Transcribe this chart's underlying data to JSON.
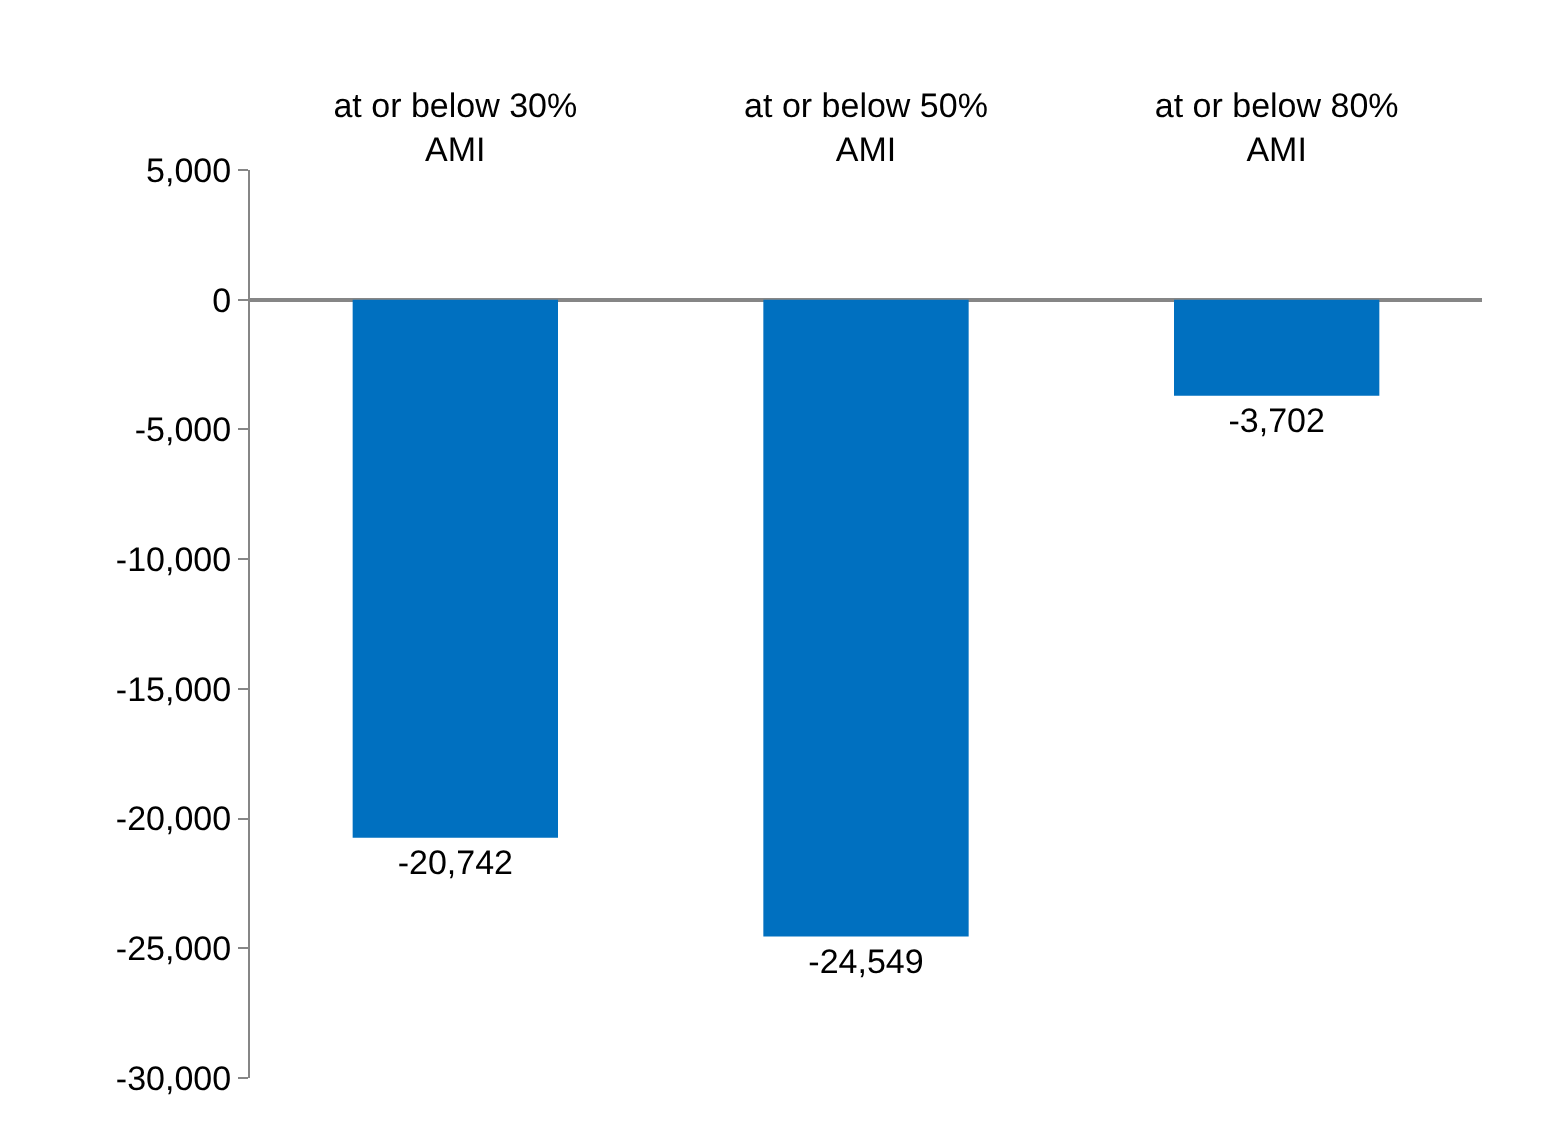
{
  "chart_data": {
    "type": "bar",
    "categories": [
      "at or below 30% AMI",
      "at or below 50% AMI",
      "at or below 80% AMI"
    ],
    "values": [
      -20742,
      -24549,
      -3702
    ],
    "value_labels": [
      "-20,742",
      "-24,549",
      "-3,702"
    ],
    "color": "#0070c0",
    "legend": false,
    "ylim": [
      -30000,
      5000
    ],
    "yticks": [
      {
        "value": 5000,
        "label": "5,000"
      },
      {
        "value": 0,
        "label": "0"
      },
      {
        "value": -5000,
        "label": "-5,000"
      },
      {
        "value": -10000,
        "label": "-10,000"
      },
      {
        "value": -15000,
        "label": "-15,000"
      },
      {
        "value": -20000,
        "label": "-20,000"
      },
      {
        "value": -25000,
        "label": "-25,000"
      },
      {
        "value": -30000,
        "label": "-30,000"
      }
    ]
  }
}
